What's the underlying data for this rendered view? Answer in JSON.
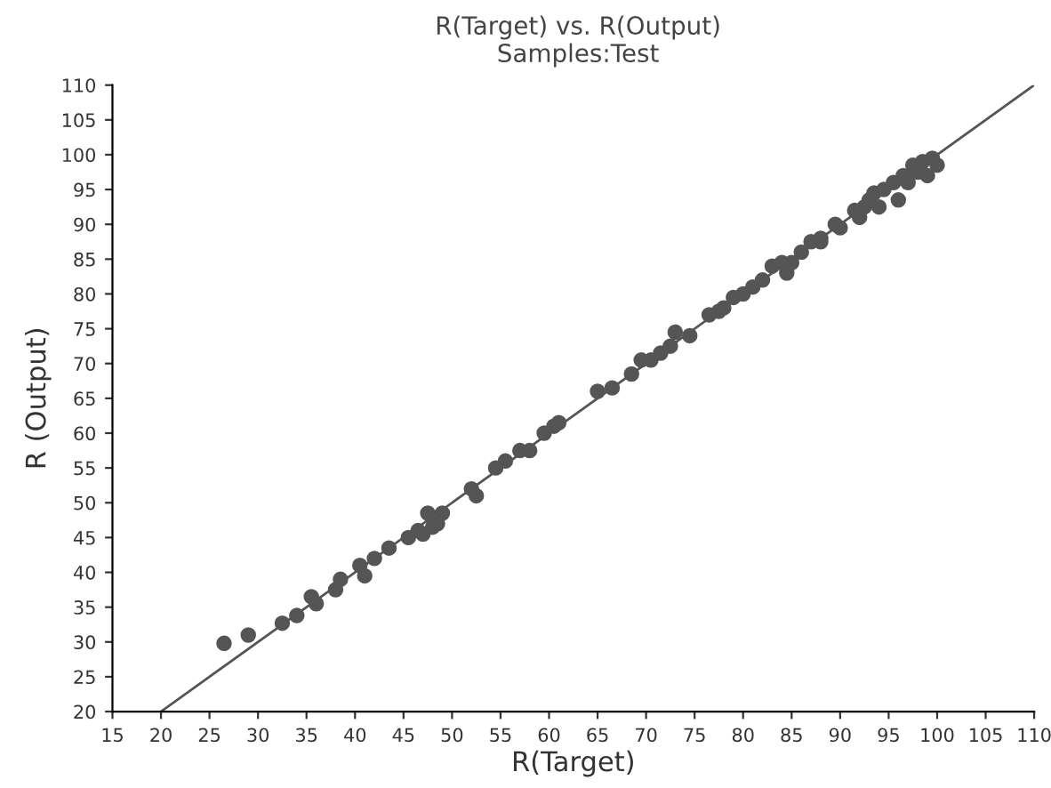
{
  "chart_data": {
    "type": "scatter",
    "title": "R(Target) vs. R(Output)",
    "subtitle": "Samples:Test",
    "xlabel": "R(Target)",
    "ylabel": "R (Output)",
    "xlim": [
      15,
      110
    ],
    "ylim": [
      20,
      110
    ],
    "xticks": [
      15,
      20,
      25,
      30,
      35,
      40,
      45,
      50,
      55,
      60,
      65,
      70,
      75,
      80,
      85,
      90,
      95,
      100,
      105,
      110
    ],
    "yticks": [
      20,
      25,
      30,
      35,
      40,
      45,
      50,
      55,
      60,
      65,
      70,
      75,
      80,
      85,
      90,
      95,
      100,
      105,
      110
    ],
    "grid": false,
    "series": [
      {
        "color": "#555555",
        "marker": "circle",
        "x": [
          26.5,
          29,
          32.5,
          34,
          35.5,
          36,
          38,
          38.5,
          40.5,
          41,
          42,
          43.5,
          45.5,
          46.5,
          47,
          47.5,
          48,
          48.5,
          49,
          52,
          52.5,
          54.5,
          55.5,
          57,
          58,
          59.5,
          60.5,
          61,
          65,
          66.5,
          68.5,
          69.5,
          70.5,
          71.5,
          72.5,
          73,
          74.5,
          76.5,
          77.5,
          78,
          79,
          80,
          81,
          82,
          83,
          84,
          84.5,
          85,
          86,
          87,
          88,
          88,
          89.5,
          90,
          91.5,
          92,
          92.5,
          93,
          93.5,
          94,
          94.5,
          95.5,
          96,
          96.5,
          97,
          97.5,
          98,
          98.5,
          99.5,
          100,
          99
        ],
        "values": [
          29.8,
          31,
          32.7,
          33.8,
          36.5,
          35.5,
          37.5,
          39,
          41,
          39.5,
          42,
          43.5,
          45,
          46,
          45.5,
          48.5,
          46.5,
          47,
          48.5,
          52,
          51,
          55,
          56,
          57.5,
          57.5,
          60,
          61,
          61.5,
          66,
          66.5,
          68.5,
          70.5,
          70.5,
          71.5,
          72.5,
          74.5,
          74,
          77,
          77.5,
          78,
          79.5,
          80,
          81,
          82,
          84,
          84.5,
          83,
          84.5,
          86,
          87.5,
          87.5,
          88,
          90,
          89.5,
          92,
          91,
          92.5,
          93.5,
          94.5,
          92.5,
          95,
          96,
          93.5,
          97,
          96,
          98.5,
          97.5,
          99,
          99.5,
          98.5,
          97
        ]
      },
      {
        "type": "line",
        "color": "#555555",
        "line_style": "solid",
        "marker": "none",
        "x": [
          20,
          110
        ],
        "values": [
          20,
          110
        ]
      }
    ]
  }
}
